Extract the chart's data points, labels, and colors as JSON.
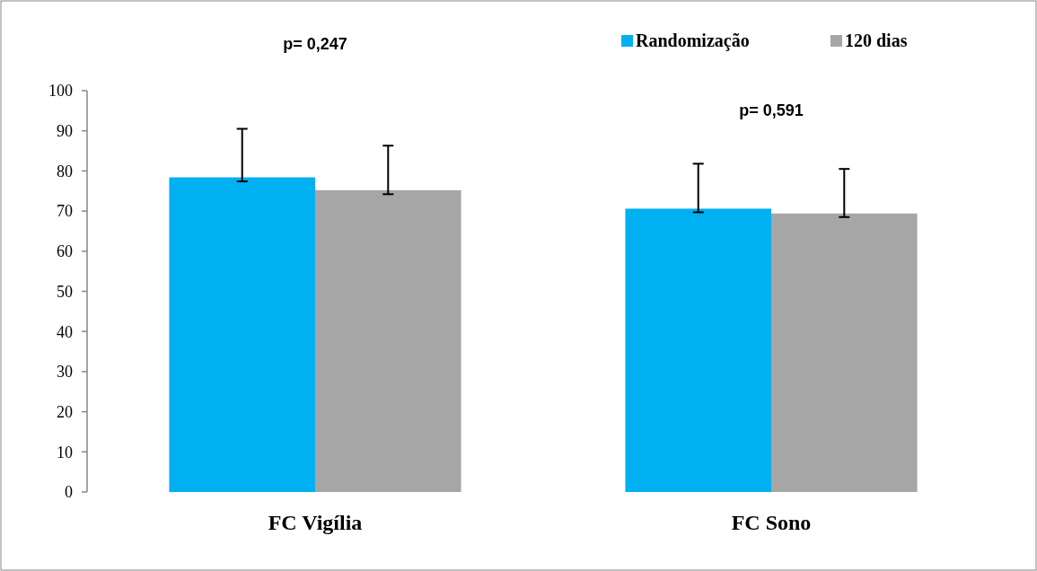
{
  "chart_data": {
    "type": "bar",
    "categories": [
      "FC Vigília",
      "FC Sono"
    ],
    "series": [
      {
        "name": "Randomização",
        "color": "#00b0f0",
        "values": [
          78.4,
          70.6
        ],
        "errors": [
          [
            77.4,
            90.5
          ],
          [
            69.7,
            81.8
          ]
        ]
      },
      {
        "name": "120 dias",
        "color": "#a6a6a6",
        "values": [
          75.2,
          69.4
        ],
        "errors": [
          [
            74.2,
            86.3
          ],
          [
            68.5,
            80.5
          ]
        ]
      }
    ],
    "ylim": [
      0,
      100
    ],
    "yticks": [
      0,
      10,
      20,
      30,
      40,
      50,
      60,
      70,
      80,
      90,
      100
    ],
    "annotations": [
      "p= 0,247",
      "p= 0,591"
    ],
    "legend": "top right",
    "grid": false
  }
}
